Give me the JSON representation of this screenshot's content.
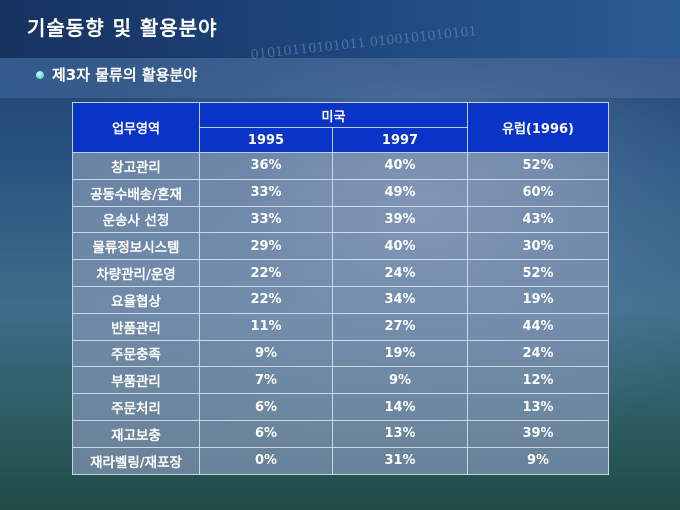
{
  "slide": {
    "title": "기술동향 및 활용분야",
    "subtitle": "제3자 물류의 활용분야",
    "background_text": "01010110101011 0100101010101"
  },
  "table": {
    "header": {
      "area": "업무영역",
      "usa": "미국",
      "usa_1995": "1995",
      "usa_1997": "1997",
      "europe": "유럽(1996)"
    },
    "rows": [
      {
        "area": "창고관리",
        "y1995": "36%",
        "y1997": "40%",
        "eu": "52%"
      },
      {
        "area": "공동수배송/혼재",
        "y1995": "33%",
        "y1997": "49%",
        "eu": "60%"
      },
      {
        "area": "운송사 선정",
        "y1995": "33%",
        "y1997": "39%",
        "eu": "43%"
      },
      {
        "area": "물류정보시스템",
        "y1995": "29%",
        "y1997": "40%",
        "eu": "30%"
      },
      {
        "area": "차량관리/운영",
        "y1995": "22%",
        "y1997": "24%",
        "eu": "52%"
      },
      {
        "area": "요율협상",
        "y1995": "22%",
        "y1997": "34%",
        "eu": "19%"
      },
      {
        "area": "반품관리",
        "y1995": "11%",
        "y1997": "27%",
        "eu": "44%"
      },
      {
        "area": "주문충족",
        "y1995": "9%",
        "y1997": "19%",
        "eu": "24%"
      },
      {
        "area": "부품관리",
        "y1995": "7%",
        "y1997": "9%",
        "eu": "12%"
      },
      {
        "area": "주문처리",
        "y1995": "6%",
        "y1997": "14%",
        "eu": "13%"
      },
      {
        "area": "재고보충",
        "y1995": "6%",
        "y1997": "13%",
        "eu": "39%"
      },
      {
        "area": "재라벨링/재포장",
        "y1995": "0%",
        "y1997": "31%",
        "eu": "9%"
      }
    ]
  },
  "colors": {
    "header_bg": "#0a34c8",
    "bullet": "#35c8c0"
  }
}
